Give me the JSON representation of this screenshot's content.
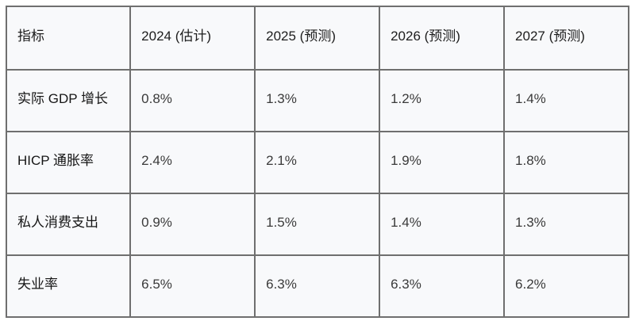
{
  "chart_data": {
    "type": "table",
    "title": "",
    "columns": [
      "指标",
      "2024 (估计)",
      "2025 (预测)",
      "2026 (预测)",
      "2027 (预测)"
    ],
    "rows": [
      [
        "实际 GDP 增长",
        "0.8%",
        "1.3%",
        "1.2%",
        "1.4%"
      ],
      [
        "HICP 通胀率",
        "2.4%",
        "2.1%",
        "1.9%",
        "1.8%"
      ],
      [
        "私人消费支出",
        "0.9%",
        "1.5%",
        "1.4%",
        "1.3%"
      ],
      [
        "失业率",
        "6.5%",
        "6.3%",
        "6.3%",
        "6.2%"
      ]
    ],
    "layout": {
      "grid": true,
      "header_row": true,
      "align": "left"
    }
  },
  "colors": {
    "cell_background": "#f8f9fb",
    "border": "#6f6f6f",
    "header_text": "#1d1d1d",
    "label_text": "#161616",
    "value_text": "#3a3a3a",
    "page_background": "#ffffff"
  }
}
